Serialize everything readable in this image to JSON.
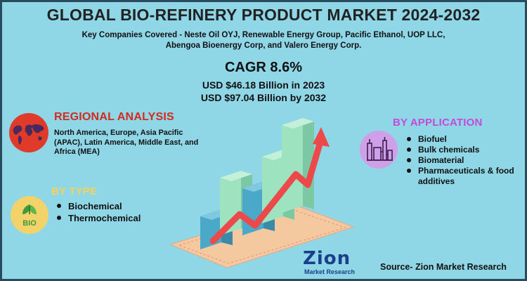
{
  "header": {
    "title": "GLOBAL BIO-REFINERY PRODUCT MARKET 2024-2032",
    "subtitle_line1": "Key Companies Covered - Neste Oil OYJ, Renewable Energy Group, Pacific Ethanol, UOP LLC,",
    "subtitle_line2": "Abengoa Bioenergy Corp, and Valero Energy Corp.",
    "cagr": "CAGR 8.6%",
    "usd_2023": "USD $46.18 Billion  in 2023",
    "usd_2032": "USD $97.04 Billion  by 2032"
  },
  "regional": {
    "heading": "REGIONAL ANALYSIS",
    "text": "North America, Europe, Asia Pacific (APAC), Latin America, Middle East, and Africa (MEA)",
    "icon": "world-map-icon",
    "color": "#e03a2a"
  },
  "by_type": {
    "heading": "BY TYPE",
    "items": [
      "Biochemical",
      "Thermochemical"
    ],
    "icon": "bio-leaf-icon",
    "color": "#f4d25c"
  },
  "by_application": {
    "heading": "BY APPLICATION",
    "items": [
      "Biofuel",
      "Bulk chemicals",
      "Biomaterial",
      "Pharmaceuticals & food additives"
    ],
    "icon": "refinery-icon",
    "color": "#c44bd8"
  },
  "logo": {
    "main": "Zion",
    "sub": "Market Research"
  },
  "source": "Source- Zion Market Research",
  "colors": {
    "background": "#8fd6e7",
    "bar_blue": "#4aa8c8",
    "bar_green": "#9ee3c0",
    "arrow": "#ec4a4a"
  }
}
